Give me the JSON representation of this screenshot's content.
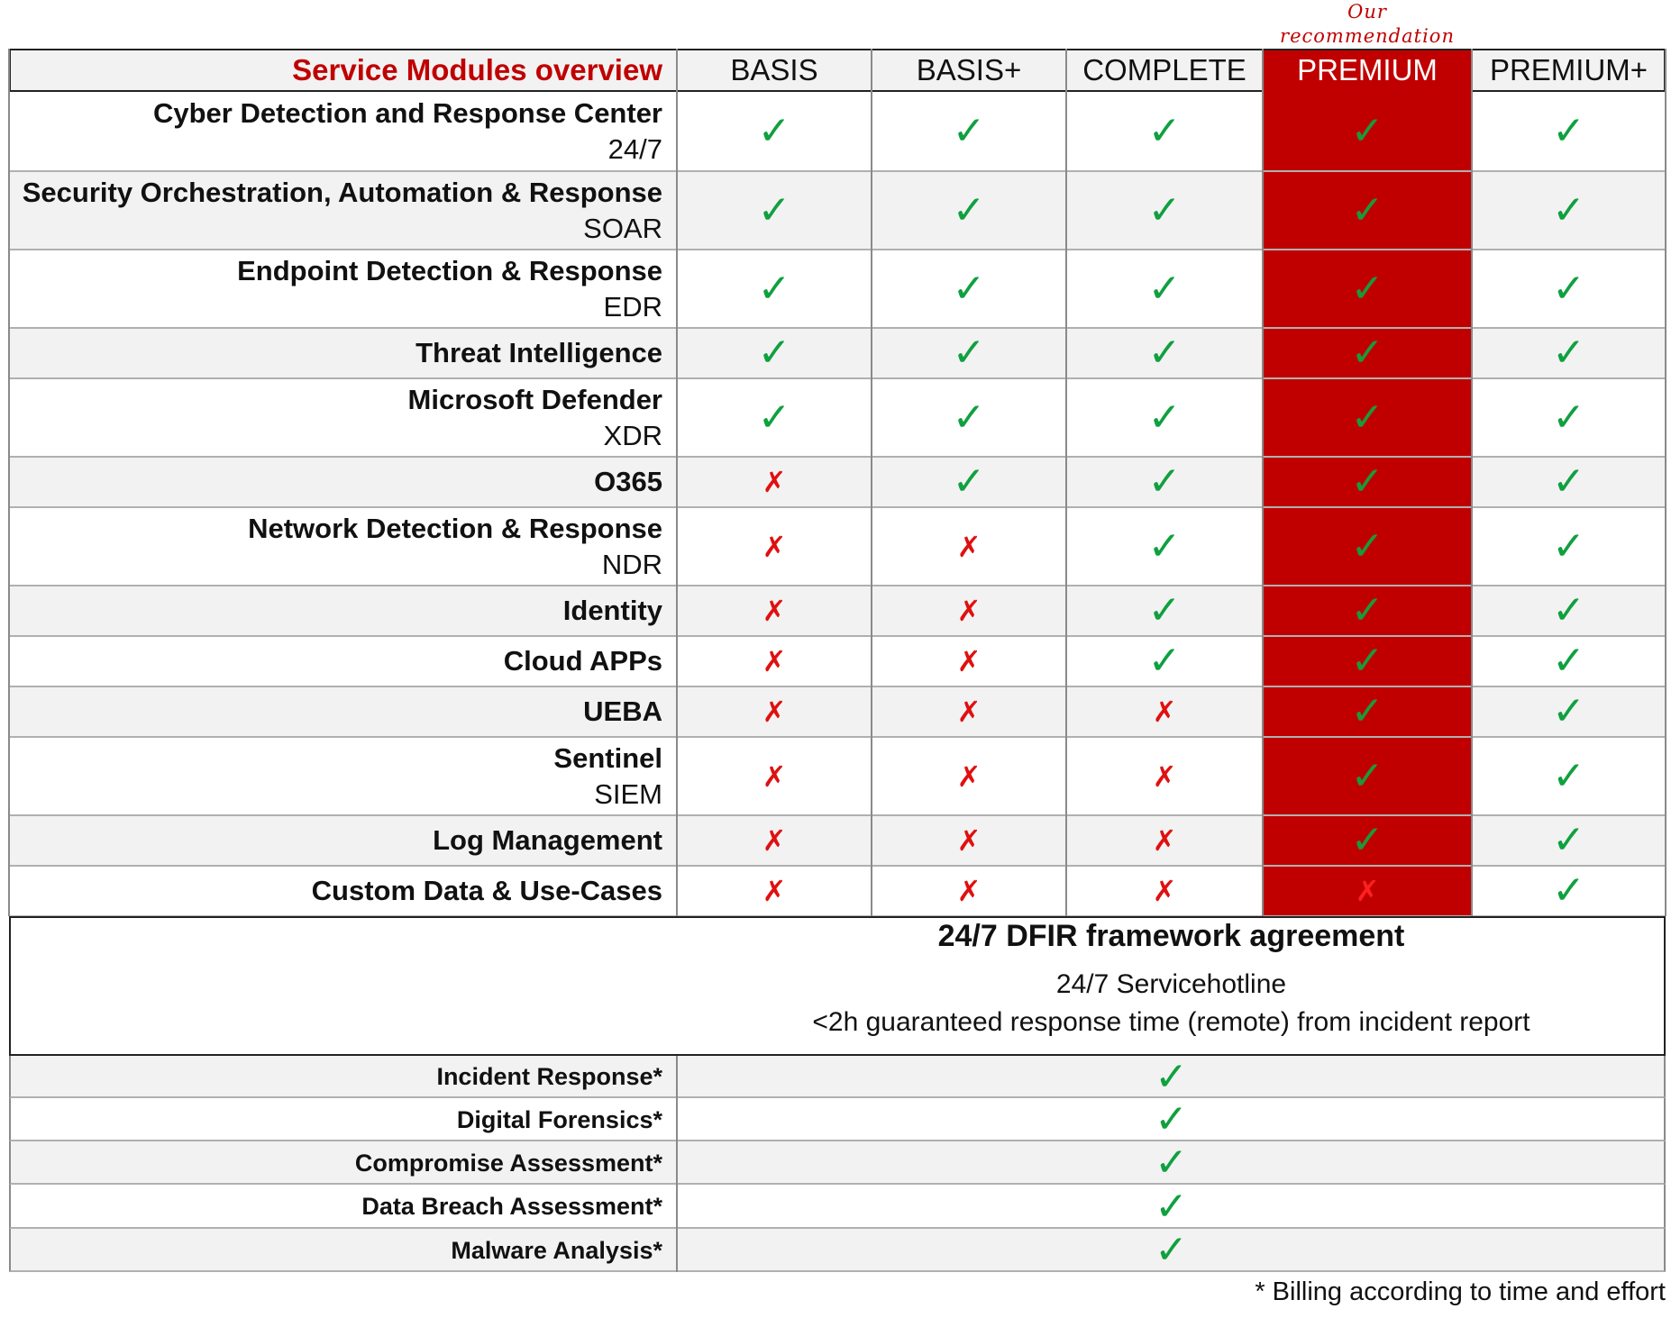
{
  "recommendation_note": [
    "Our",
    "recommendation"
  ],
  "table": {
    "title": "Service Modules overview",
    "columns": [
      "BASIS",
      "BASIS+",
      "COMPLETE",
      "PREMIUM",
      "PREMIUM+"
    ],
    "highlighted_column": "PREMIUM",
    "rows": [
      {
        "main": "Cyber Detection and Response Center",
        "sub": "24/7",
        "values": [
          true,
          true,
          true,
          true,
          true
        ]
      },
      {
        "main": "Security Orchestration, Automation & Response",
        "sub": "SOAR",
        "values": [
          true,
          true,
          true,
          true,
          true
        ]
      },
      {
        "main": "Endpoint Detection & Response",
        "sub": "EDR",
        "values": [
          true,
          true,
          true,
          true,
          true
        ]
      },
      {
        "main": "Threat Intelligence",
        "sub": "",
        "values": [
          true,
          true,
          true,
          true,
          true
        ]
      },
      {
        "main": "Microsoft Defender",
        "sub": "XDR",
        "values": [
          true,
          true,
          true,
          true,
          true
        ]
      },
      {
        "main": "O365",
        "sub": "",
        "values": [
          false,
          true,
          true,
          true,
          true
        ]
      },
      {
        "main": "Network Detection & Response",
        "sub": "NDR",
        "values": [
          false,
          false,
          true,
          true,
          true
        ]
      },
      {
        "main": "Identity",
        "sub": "",
        "values": [
          false,
          false,
          true,
          true,
          true
        ]
      },
      {
        "main": "Cloud APPs",
        "sub": "",
        "values": [
          false,
          false,
          true,
          true,
          true
        ]
      },
      {
        "main": "UEBA",
        "sub": "",
        "values": [
          false,
          false,
          false,
          true,
          true
        ]
      },
      {
        "main": "Sentinel",
        "sub": "SIEM",
        "values": [
          false,
          false,
          false,
          true,
          true
        ]
      },
      {
        "main": "Log Management",
        "sub": "",
        "values": [
          false,
          false,
          false,
          true,
          true
        ]
      },
      {
        "main": "Custom Data & Use-Cases",
        "sub": "",
        "values": [
          false,
          false,
          false,
          false,
          true
        ]
      }
    ]
  },
  "dfir": {
    "title": "24/7 DFIR framework agreement",
    "line1": "24/7 Servicehotline",
    "line2": "<2h guaranteed response time (remote) from incident report",
    "items": [
      {
        "label": "Incident Response*",
        "included": true
      },
      {
        "label": "Digital Forensics*",
        "included": true
      },
      {
        "label": "Compromise Assessment*",
        "included": true
      },
      {
        "label": "Data Breach Assessment*",
        "included": true
      },
      {
        "label": "Malware Analysis*",
        "included": true
      }
    ]
  },
  "symbols": {
    "check": "✓",
    "cross": "✗"
  },
  "colors": {
    "accent_red": "#c00000",
    "check_green": "#10a040",
    "cross_red": "#e01010"
  },
  "footnote": "* Billing according to time and effort"
}
